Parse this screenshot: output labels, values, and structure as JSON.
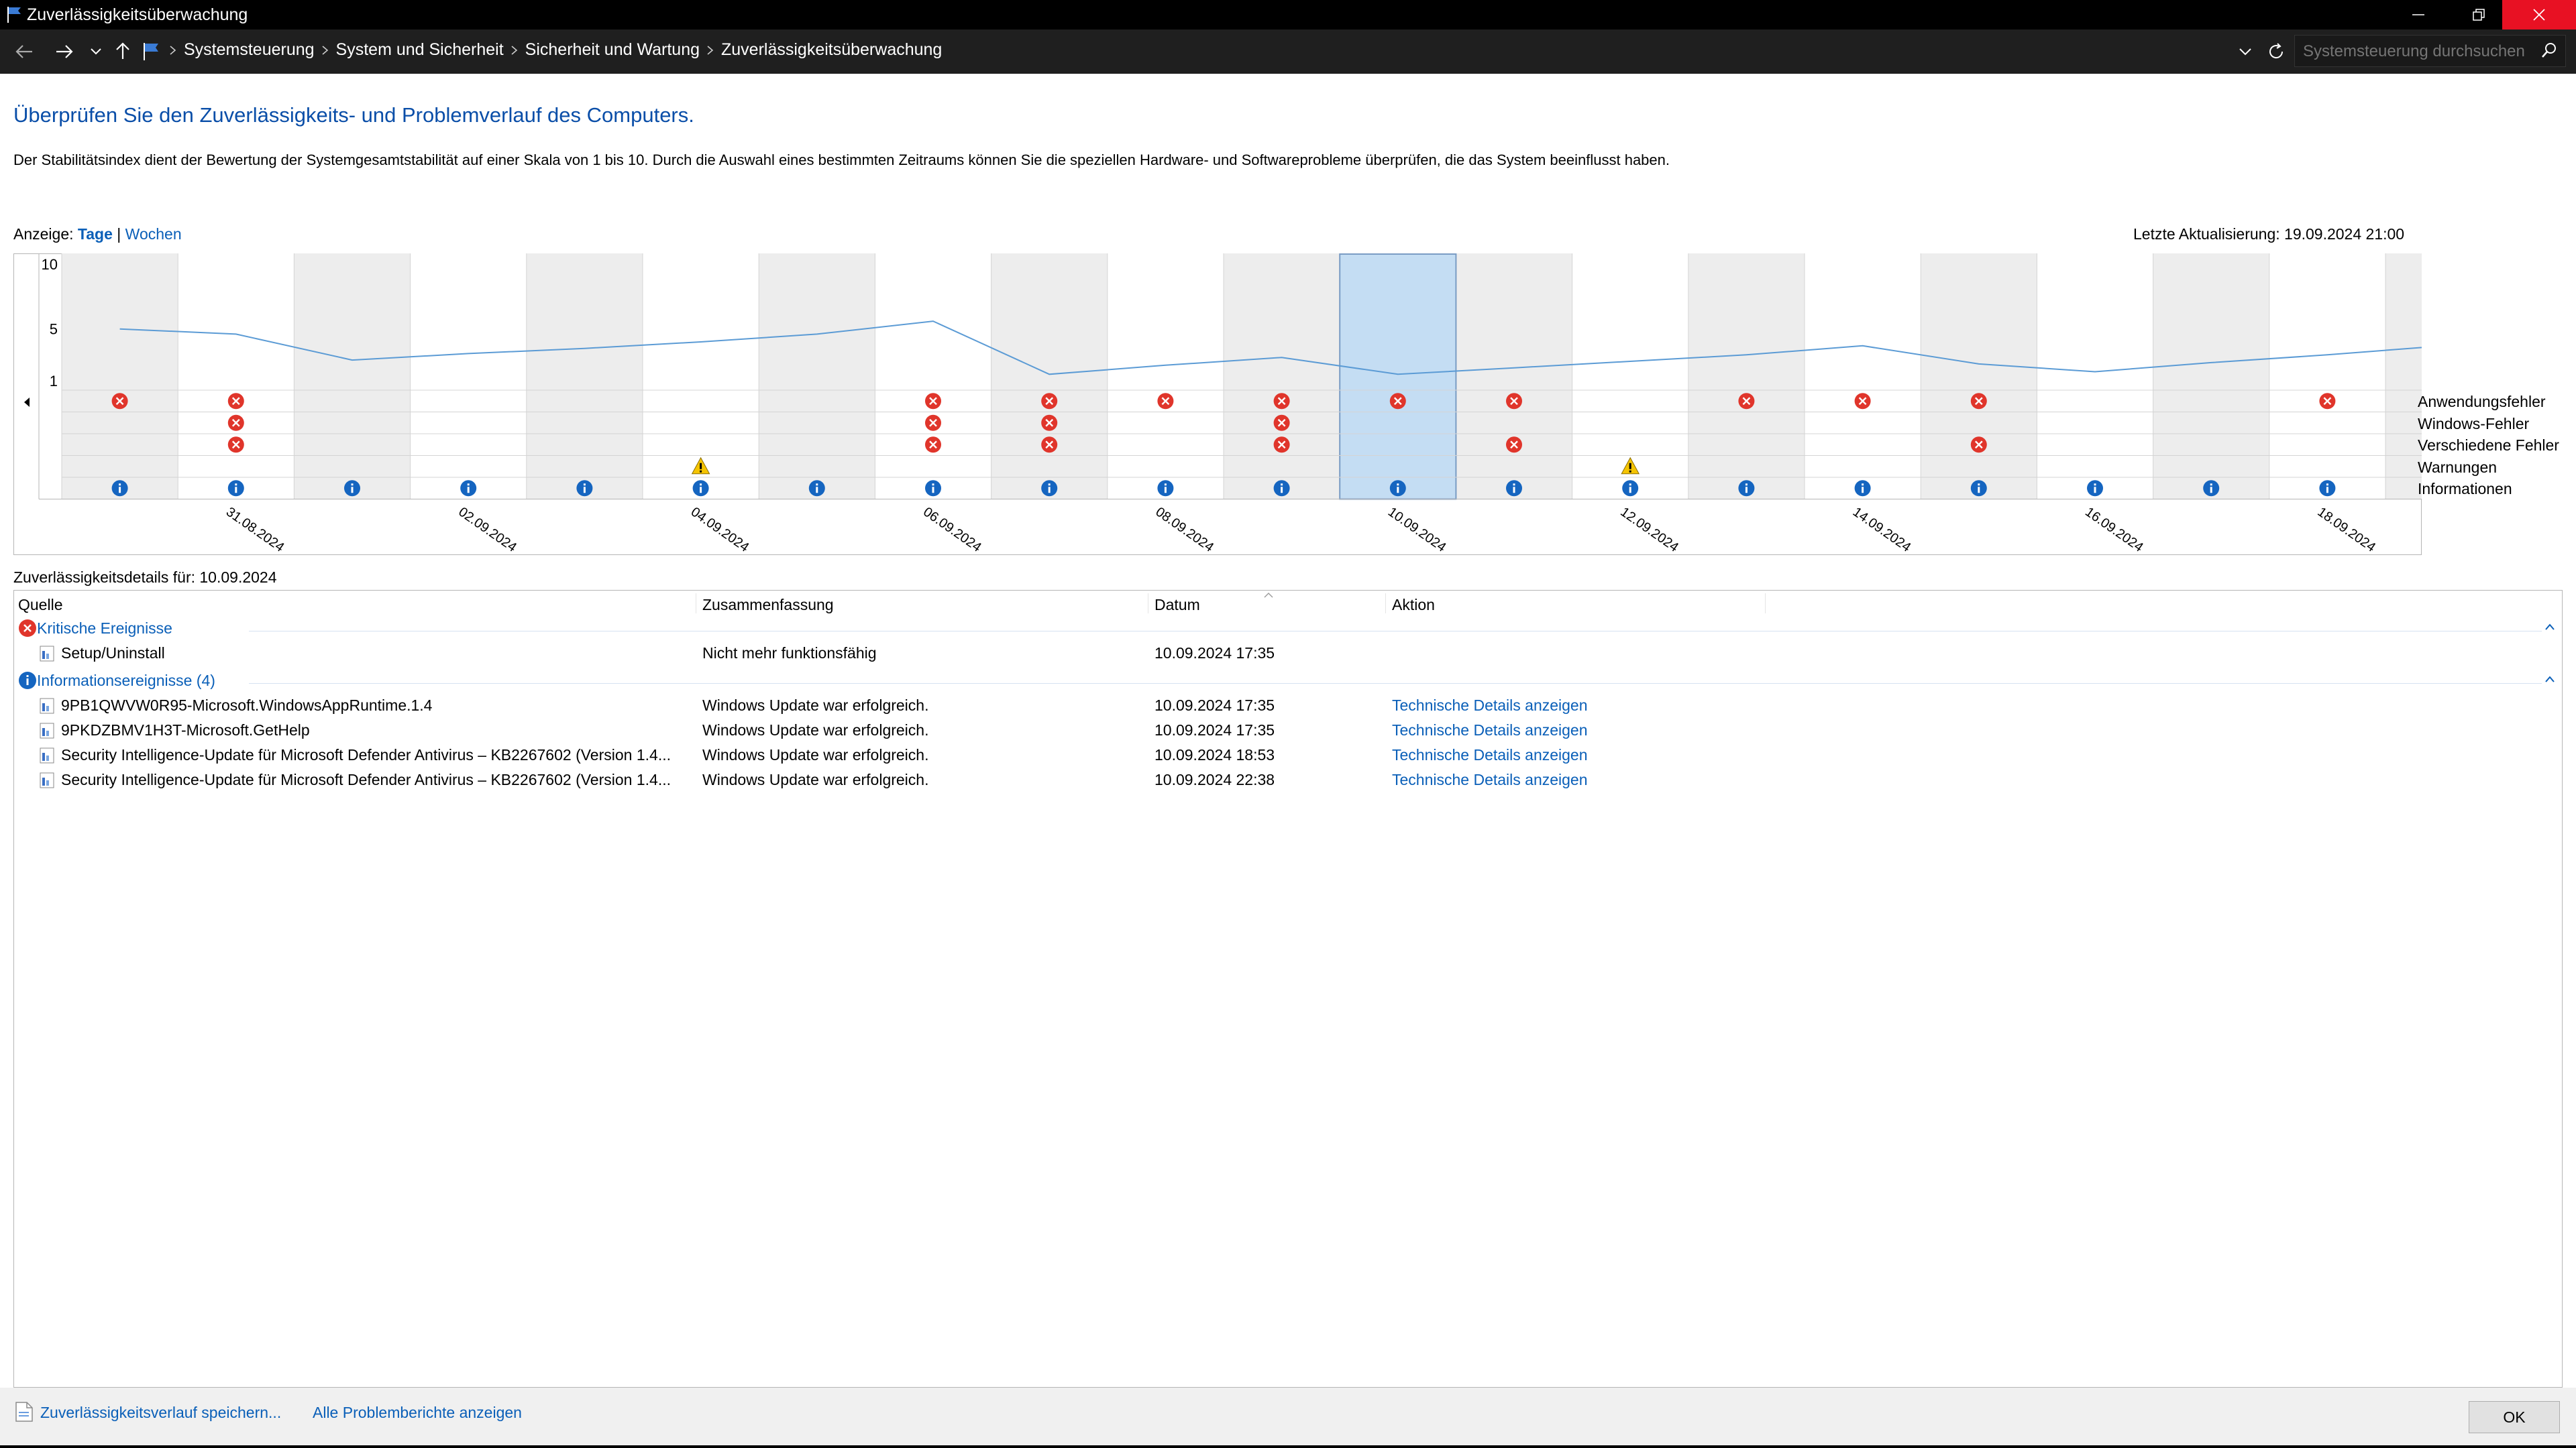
{
  "window": {
    "title": "Zuverlässigkeitsüberwachung",
    "buttons": {
      "minimize": "—",
      "restore": "❐",
      "close": "✕"
    }
  },
  "address_bar": {
    "breadcrumbs": [
      "Systemsteuerung",
      "System und Sicherheit",
      "Sicherheit und Wartung",
      "Zuverlässigkeitsüberwachung"
    ],
    "search_placeholder": "Systemsteuerung durchsuchen"
  },
  "page": {
    "title": "Überprüfen Sie den Zuverlässigkeits- und Problemverlauf des Computers.",
    "description": "Der Stabilitätsindex dient der Bewertung der Systemgesamtstabilität auf einer Skala von 1 bis 10. Durch die Auswahl eines bestimmten Zeitraums können Sie die speziellen Hardware- und Softwareprobleme überprüfen, die das System beeinflusst haben.",
    "view_label": "Anzeige:",
    "view_days": "Tage",
    "view_separator": "|",
    "view_weeks": "Wochen",
    "last_update": "Letzte Aktualisierung: 19.09.2024 21:00"
  },
  "chart_data": {
    "type": "line",
    "y_ticks": [
      "10",
      "5",
      "1"
    ],
    "ylim": [
      1,
      10
    ],
    "days": [
      "30.08.2024",
      "31.08.2024",
      "01.09.2024",
      "02.09.2024",
      "03.09.2024",
      "04.09.2024",
      "05.09.2024",
      "06.09.2024",
      "07.09.2024",
      "08.09.2024",
      "09.09.2024",
      "10.09.2024",
      "11.09.2024",
      "12.09.2024",
      "13.09.2024",
      "14.09.2024",
      "15.09.2024",
      "16.09.2024",
      "17.09.2024",
      "18.09.2024",
      "19.09.2024"
    ],
    "x_tick_labels": [
      "31.08.2024",
      "02.09.2024",
      "04.09.2024",
      "06.09.2024",
      "08.09.2024",
      "10.09.2024",
      "12.09.2024",
      "14.09.2024",
      "16.09.2024",
      "18.09.2024"
    ],
    "selected_day": "10.09.2024",
    "stability_index": [
      5.0,
      4.6,
      2.6,
      3.1,
      3.5,
      4.0,
      4.6,
      5.6,
      1.5,
      2.2,
      2.8,
      1.5,
      2.0,
      2.5,
      3.0,
      3.7,
      2.3,
      1.7,
      2.4,
      3.0,
      3.7
    ],
    "series": [
      {
        "name": "Anwendungsfehler",
        "values": [
          1,
          1,
          0,
          0,
          0,
          0,
          0,
          1,
          1,
          1,
          1,
          1,
          1,
          0,
          1,
          1,
          1,
          0,
          0,
          1,
          1
        ]
      },
      {
        "name": "Windows-Fehler",
        "values": [
          0,
          1,
          0,
          0,
          0,
          0,
          0,
          1,
          1,
          0,
          1,
          0,
          0,
          0,
          0,
          0,
          0,
          0,
          0,
          0,
          0
        ]
      },
      {
        "name": "Verschiedene Fehler",
        "values": [
          0,
          1,
          0,
          0,
          0,
          0,
          0,
          1,
          1,
          0,
          1,
          0,
          1,
          0,
          0,
          0,
          1,
          0,
          0,
          0,
          0
        ]
      },
      {
        "name": "Warnungen",
        "values": [
          0,
          0,
          0,
          0,
          0,
          1,
          0,
          0,
          0,
          0,
          0,
          0,
          0,
          1,
          0,
          0,
          0,
          0,
          0,
          0,
          0
        ]
      },
      {
        "name": "Informationen",
        "values": [
          1,
          1,
          1,
          1,
          1,
          1,
          1,
          1,
          1,
          1,
          1,
          1,
          1,
          1,
          1,
          1,
          1,
          1,
          1,
          1,
          1
        ]
      }
    ]
  },
  "details": {
    "label": "Zuverlässigkeitsdetails für: 10.09.2024",
    "columns": [
      "Quelle",
      "Zusammenfassung",
      "Datum",
      "Aktion"
    ],
    "groups": [
      {
        "label": "Kritische Ereignisse",
        "icon": "critical-error-icon",
        "rows": [
          {
            "source": "Setup/Uninstall",
            "summary": "Nicht mehr funktionsfähig",
            "date": "10.09.2024 17:35",
            "action": ""
          }
        ]
      },
      {
        "label": "Informationsereignisse (4)",
        "icon": "information-icon",
        "rows": [
          {
            "source": "9PB1QWVW0R95-Microsoft.WindowsAppRuntime.1.4",
            "summary": "Windows Update war erfolgreich.",
            "date": "10.09.2024 17:35",
            "action": "Technische Details anzeigen"
          },
          {
            "source": "9PKDZBMV1H3T-Microsoft.GetHelp",
            "summary": "Windows Update war erfolgreich.",
            "date": "10.09.2024 17:35",
            "action": "Technische Details anzeigen"
          },
          {
            "source": "Security Intelligence-Update für Microsoft Defender Antivirus – KB2267602 (Version 1.4...",
            "summary": "Windows Update war erfolgreich.",
            "date": "10.09.2024 18:53",
            "action": "Technische Details anzeigen"
          },
          {
            "source": "Security Intelligence-Update für Microsoft Defender Antivirus – KB2267602 (Version 1.4...",
            "summary": "Windows Update war erfolgreich.",
            "date": "10.09.2024 22:38",
            "action": "Technische Details anzeigen"
          }
        ]
      }
    ]
  },
  "footer": {
    "save_history": "Zuverlässigkeitsverlauf speichern...",
    "all_reports": "Alle Problemberichte anzeigen",
    "ok": "OK"
  }
}
